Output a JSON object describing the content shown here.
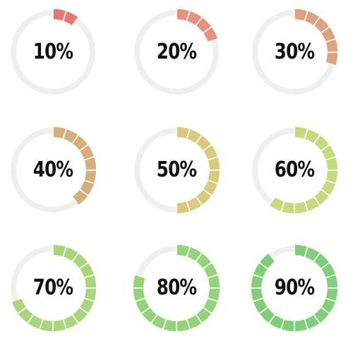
{
  "stock_id": "253157484",
  "track_color": "#efefef",
  "segments_total": 20,
  "items": [
    {
      "percent": 0.1,
      "label": "10%",
      "color": "#e27b72"
    },
    {
      "percent": 0.2,
      "label": "20%",
      "color": "#e8917d"
    },
    {
      "percent": 0.3,
      "label": "30%",
      "color": "#dda27f"
    },
    {
      "percent": 0.4,
      "label": "40%",
      "color": "#d6b07c"
    },
    {
      "percent": 0.5,
      "label": "50%",
      "color": "#d8cb7c"
    },
    {
      "percent": 0.6,
      "label": "60%",
      "color": "#c6d97b"
    },
    {
      "percent": 0.7,
      "label": "70%",
      "color": "#a8d67a"
    },
    {
      "percent": 0.8,
      "label": "80%",
      "color": "#93d47b"
    },
    {
      "percent": 0.9,
      "label": "90%",
      "color": "#7fcf7a"
    }
  ]
}
